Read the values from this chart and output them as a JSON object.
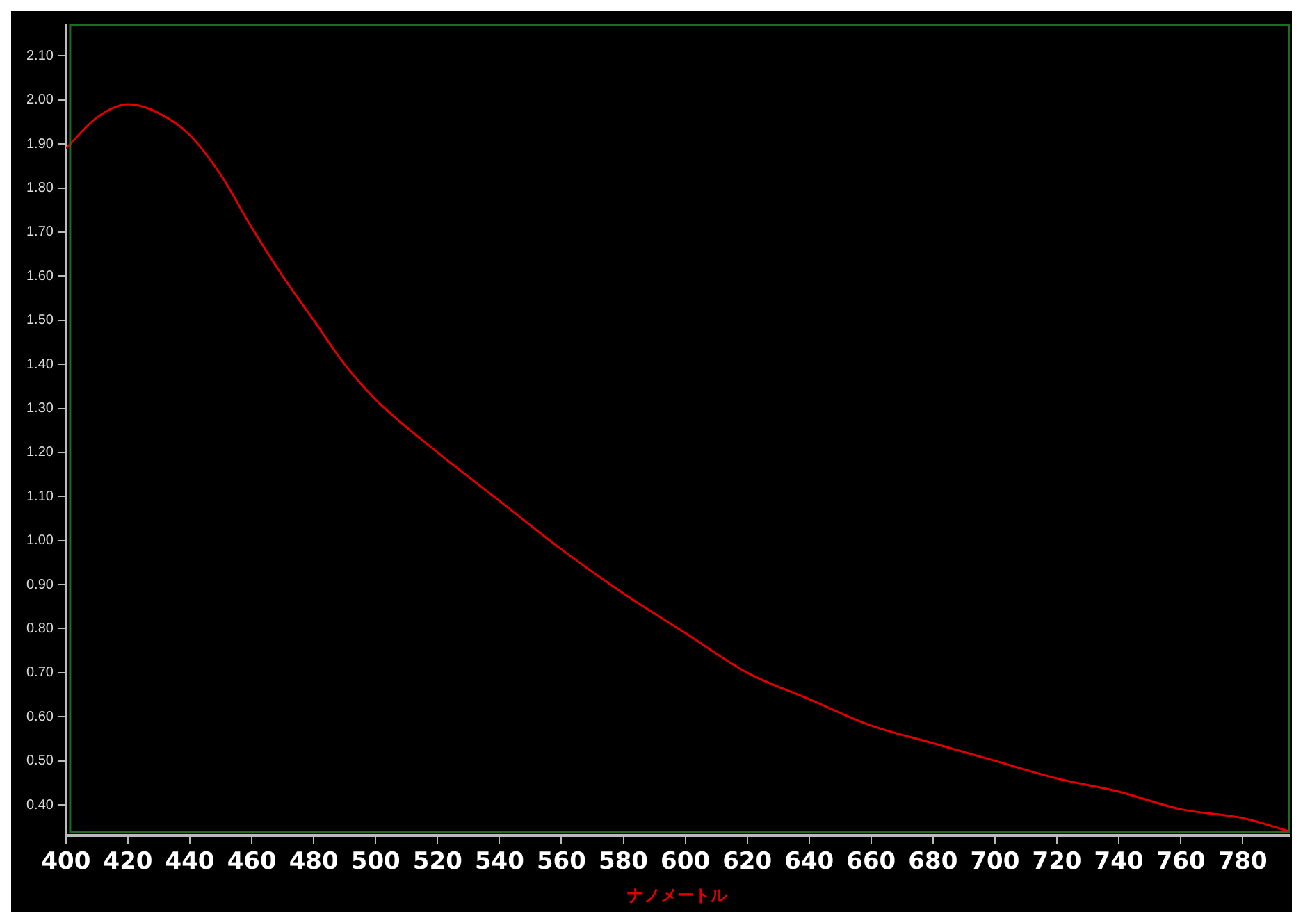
{
  "chart_data": {
    "type": "line",
    "xlabel": "ナノメートル",
    "x": [
      400,
      410,
      420,
      430,
      440,
      450,
      460,
      470,
      480,
      490,
      500,
      520,
      540,
      560,
      580,
      600,
      620,
      640,
      660,
      680,
      700,
      720,
      740,
      760,
      780,
      795
    ],
    "series": [
      {
        "color": "#e00000",
        "values": [
          1.89,
          1.96,
          1.99,
          1.97,
          1.92,
          1.83,
          1.71,
          1.6,
          1.5,
          1.4,
          1.32,
          1.2,
          1.09,
          0.98,
          0.88,
          0.79,
          0.7,
          0.64,
          0.58,
          0.54,
          0.5,
          0.46,
          0.43,
          0.39,
          0.37,
          0.34
        ]
      }
    ],
    "xlim": [
      400,
      795
    ],
    "xticks": [
      400,
      420,
      440,
      460,
      480,
      500,
      520,
      540,
      560,
      580,
      600,
      620,
      640,
      660,
      680,
      700,
      720,
      740,
      760,
      780
    ],
    "ylim": [
      0.33,
      2.17
    ],
    "yticks": [
      {
        "value": 0.4,
        "label": "0.40"
      },
      {
        "value": 0.5,
        "label": "0.50"
      },
      {
        "value": 0.6,
        "label": "0.60"
      },
      {
        "value": 0.7,
        "label": "0.70"
      },
      {
        "value": 0.8,
        "label": "0.80"
      },
      {
        "value": 0.9,
        "label": "0.90"
      },
      {
        "value": 1.0,
        "label": "1.00"
      },
      {
        "value": 1.1,
        "label": "1.10"
      },
      {
        "value": 1.2,
        "label": "1.20"
      },
      {
        "value": 1.3,
        "label": "1.30"
      },
      {
        "value": 1.4,
        "label": "1.40"
      },
      {
        "value": 1.5,
        "label": "1.50"
      },
      {
        "value": 1.6,
        "label": "1.60"
      },
      {
        "value": 1.7,
        "label": "1.70"
      },
      {
        "value": 1.8,
        "label": "1.80"
      },
      {
        "value": 1.9,
        "label": "1.90"
      },
      {
        "value": 2.0,
        "label": "2.00"
      },
      {
        "value": 2.1,
        "label": "2.10"
      }
    ],
    "grid": false,
    "legend": false,
    "marker": "none",
    "line_style": "solid"
  }
}
